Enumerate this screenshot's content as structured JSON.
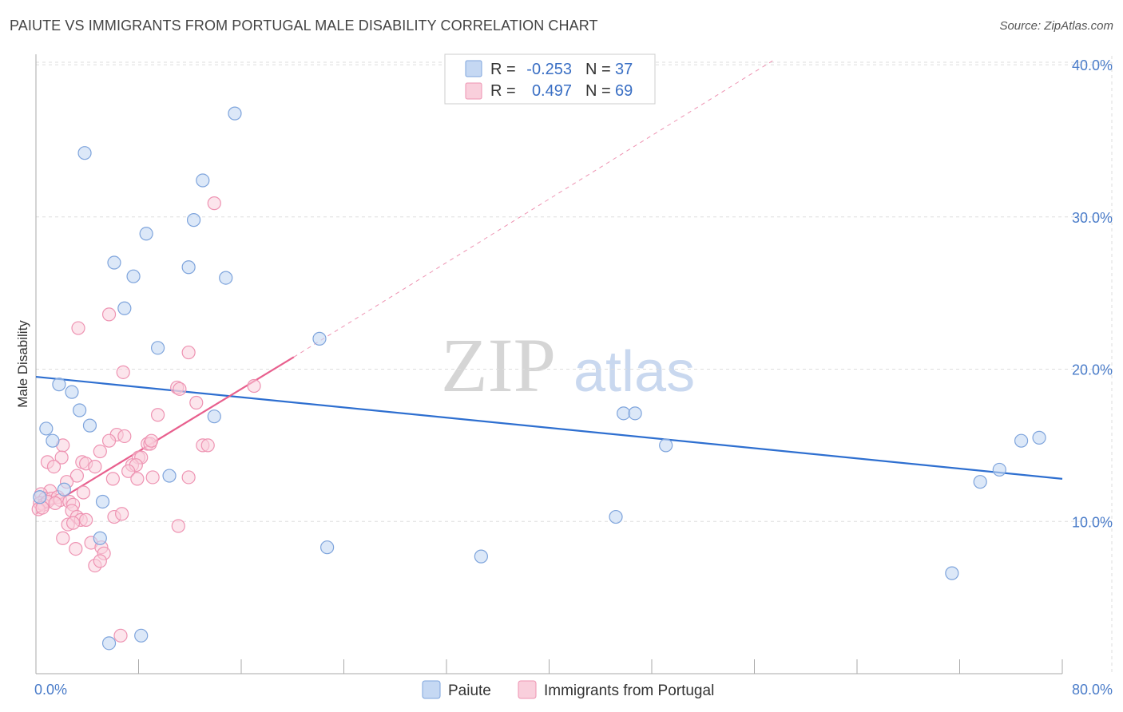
{
  "header": {
    "title": "PAIUTE VS IMMIGRANTS FROM PORTUGAL MALE DISABILITY CORRELATION CHART",
    "source": "Source: ZipAtlas.com"
  },
  "watermark": {
    "part1": "ZIP",
    "part2": "atlas"
  },
  "legend": {
    "rows": [
      {
        "r_label": "R =",
        "r_value": "-0.253",
        "n_label": "N =",
        "n_value": "37",
        "color": "#a9c6ef"
      },
      {
        "r_label": "R =",
        "r_value": "0.497",
        "n_label": "N =",
        "n_value": "69",
        "color": "#f5b5ca"
      }
    ]
  },
  "colors": {
    "blue_fill": "#c5d8f3",
    "blue_stroke": "#7ea4dc",
    "blue_line": "#2e6fd0",
    "pink_fill": "#f9cfdc",
    "pink_stroke": "#ee93b2",
    "pink_line": "#e8608e",
    "grid": "#dddddd",
    "axis": "#aaaaaa"
  },
  "chart_data": {
    "type": "scatter",
    "title": "PAIUTE VS IMMIGRANTS FROM PORTUGAL MALE DISABILITY CORRELATION CHART",
    "xlabel": "",
    "ylabel": "Male Disability",
    "xlim": [
      0,
      80
    ],
    "ylim": [
      0,
      41
    ],
    "x_tick_labels": [
      "0.0%",
      "80.0%"
    ],
    "y_ticks": [
      10,
      20,
      30,
      40
    ],
    "y_tick_labels": [
      "10.0%",
      "20.0%",
      "30.0%",
      "40.0%"
    ],
    "grid": true,
    "series": [
      {
        "name": "Paiute",
        "r": -0.253,
        "n": 37,
        "trend": {
          "x0": 0,
          "y0": 19.5,
          "x1": 80,
          "y1": 12.8
        },
        "points": [
          [
            15.5,
            36.8
          ],
          [
            3.8,
            34.2
          ],
          [
            13.0,
            32.4
          ],
          [
            12.3,
            29.8
          ],
          [
            8.6,
            28.9
          ],
          [
            6.1,
            27.0
          ],
          [
            11.9,
            26.7
          ],
          [
            7.6,
            26.1
          ],
          [
            14.8,
            26.0
          ],
          [
            6.9,
            24.0
          ],
          [
            22.1,
            22.0
          ],
          [
            9.5,
            21.4
          ],
          [
            1.8,
            19.0
          ],
          [
            2.8,
            18.5
          ],
          [
            3.4,
            17.3
          ],
          [
            13.9,
            16.9
          ],
          [
            4.2,
            16.3
          ],
          [
            0.8,
            16.1
          ],
          [
            1.3,
            15.3
          ],
          [
            2.2,
            12.1
          ],
          [
            10.4,
            13.0
          ],
          [
            5.2,
            11.3
          ],
          [
            0.3,
            11.6
          ],
          [
            5.0,
            8.9
          ],
          [
            22.7,
            8.3
          ],
          [
            34.7,
            7.7
          ],
          [
            45.2,
            10.3
          ],
          [
            45.8,
            17.1
          ],
          [
            46.7,
            17.1
          ],
          [
            49.1,
            15.0
          ],
          [
            71.4,
            6.6
          ],
          [
            73.6,
            12.6
          ],
          [
            75.1,
            13.4
          ],
          [
            76.8,
            15.3
          ],
          [
            78.2,
            15.5
          ],
          [
            8.2,
            2.5
          ],
          [
            5.7,
            2.0
          ]
        ]
      },
      {
        "name": "Immigrants from Portugal",
        "r": 0.497,
        "n": 69,
        "trend": {
          "x0": 0,
          "y0": 10.5,
          "x1": 20.1,
          "y1": 20.8
        },
        "trend_dashed": {
          "x0": 20.1,
          "y0": 20.8,
          "x1": 57.5,
          "y1": 40.3
        },
        "points": [
          [
            13.9,
            30.9
          ],
          [
            5.7,
            23.6
          ],
          [
            3.3,
            22.7
          ],
          [
            11.9,
            21.1
          ],
          [
            6.8,
            19.8
          ],
          [
            11.0,
            18.8
          ],
          [
            11.2,
            18.7
          ],
          [
            17.0,
            18.9
          ],
          [
            12.5,
            17.8
          ],
          [
            9.5,
            17.0
          ],
          [
            6.3,
            15.7
          ],
          [
            6.9,
            15.6
          ],
          [
            5.7,
            15.3
          ],
          [
            8.7,
            15.1
          ],
          [
            8.9,
            15.1
          ],
          [
            9.0,
            15.3
          ],
          [
            13.0,
            15.0
          ],
          [
            13.4,
            15.0
          ],
          [
            2.1,
            15.0
          ],
          [
            5.0,
            14.6
          ],
          [
            2.0,
            14.2
          ],
          [
            8.0,
            14.2
          ],
          [
            8.2,
            14.2
          ],
          [
            0.9,
            13.9
          ],
          [
            3.6,
            13.9
          ],
          [
            3.9,
            13.8
          ],
          [
            4.6,
            13.6
          ],
          [
            1.4,
            13.6
          ],
          [
            7.5,
            13.7
          ],
          [
            7.8,
            13.7
          ],
          [
            7.2,
            13.3
          ],
          [
            3.2,
            13.0
          ],
          [
            6.0,
            12.8
          ],
          [
            7.9,
            12.8
          ],
          [
            9.1,
            12.9
          ],
          [
            11.9,
            12.9
          ],
          [
            2.4,
            12.6
          ],
          [
            1.1,
            12.0
          ],
          [
            3.7,
            11.9
          ],
          [
            0.4,
            11.8
          ],
          [
            0.7,
            11.5
          ],
          [
            1.2,
            11.5
          ],
          [
            1.7,
            11.6
          ],
          [
            1.9,
            11.4
          ],
          [
            0.3,
            11.2
          ],
          [
            0.6,
            11.1
          ],
          [
            0.9,
            11.3
          ],
          [
            1.5,
            11.2
          ],
          [
            2.6,
            11.3
          ],
          [
            2.9,
            11.1
          ],
          [
            0.2,
            10.8
          ],
          [
            0.5,
            10.9
          ],
          [
            2.8,
            10.7
          ],
          [
            3.2,
            10.3
          ],
          [
            3.5,
            10.1
          ],
          [
            3.9,
            10.1
          ],
          [
            6.1,
            10.3
          ],
          [
            6.7,
            10.5
          ],
          [
            2.5,
            9.8
          ],
          [
            2.9,
            9.9
          ],
          [
            11.1,
            9.7
          ],
          [
            2.1,
            8.9
          ],
          [
            4.3,
            8.6
          ],
          [
            5.1,
            8.3
          ],
          [
            5.3,
            7.9
          ],
          [
            3.1,
            8.2
          ],
          [
            4.6,
            7.1
          ],
          [
            5.0,
            7.4
          ],
          [
            6.6,
            2.5
          ]
        ]
      }
    ]
  }
}
